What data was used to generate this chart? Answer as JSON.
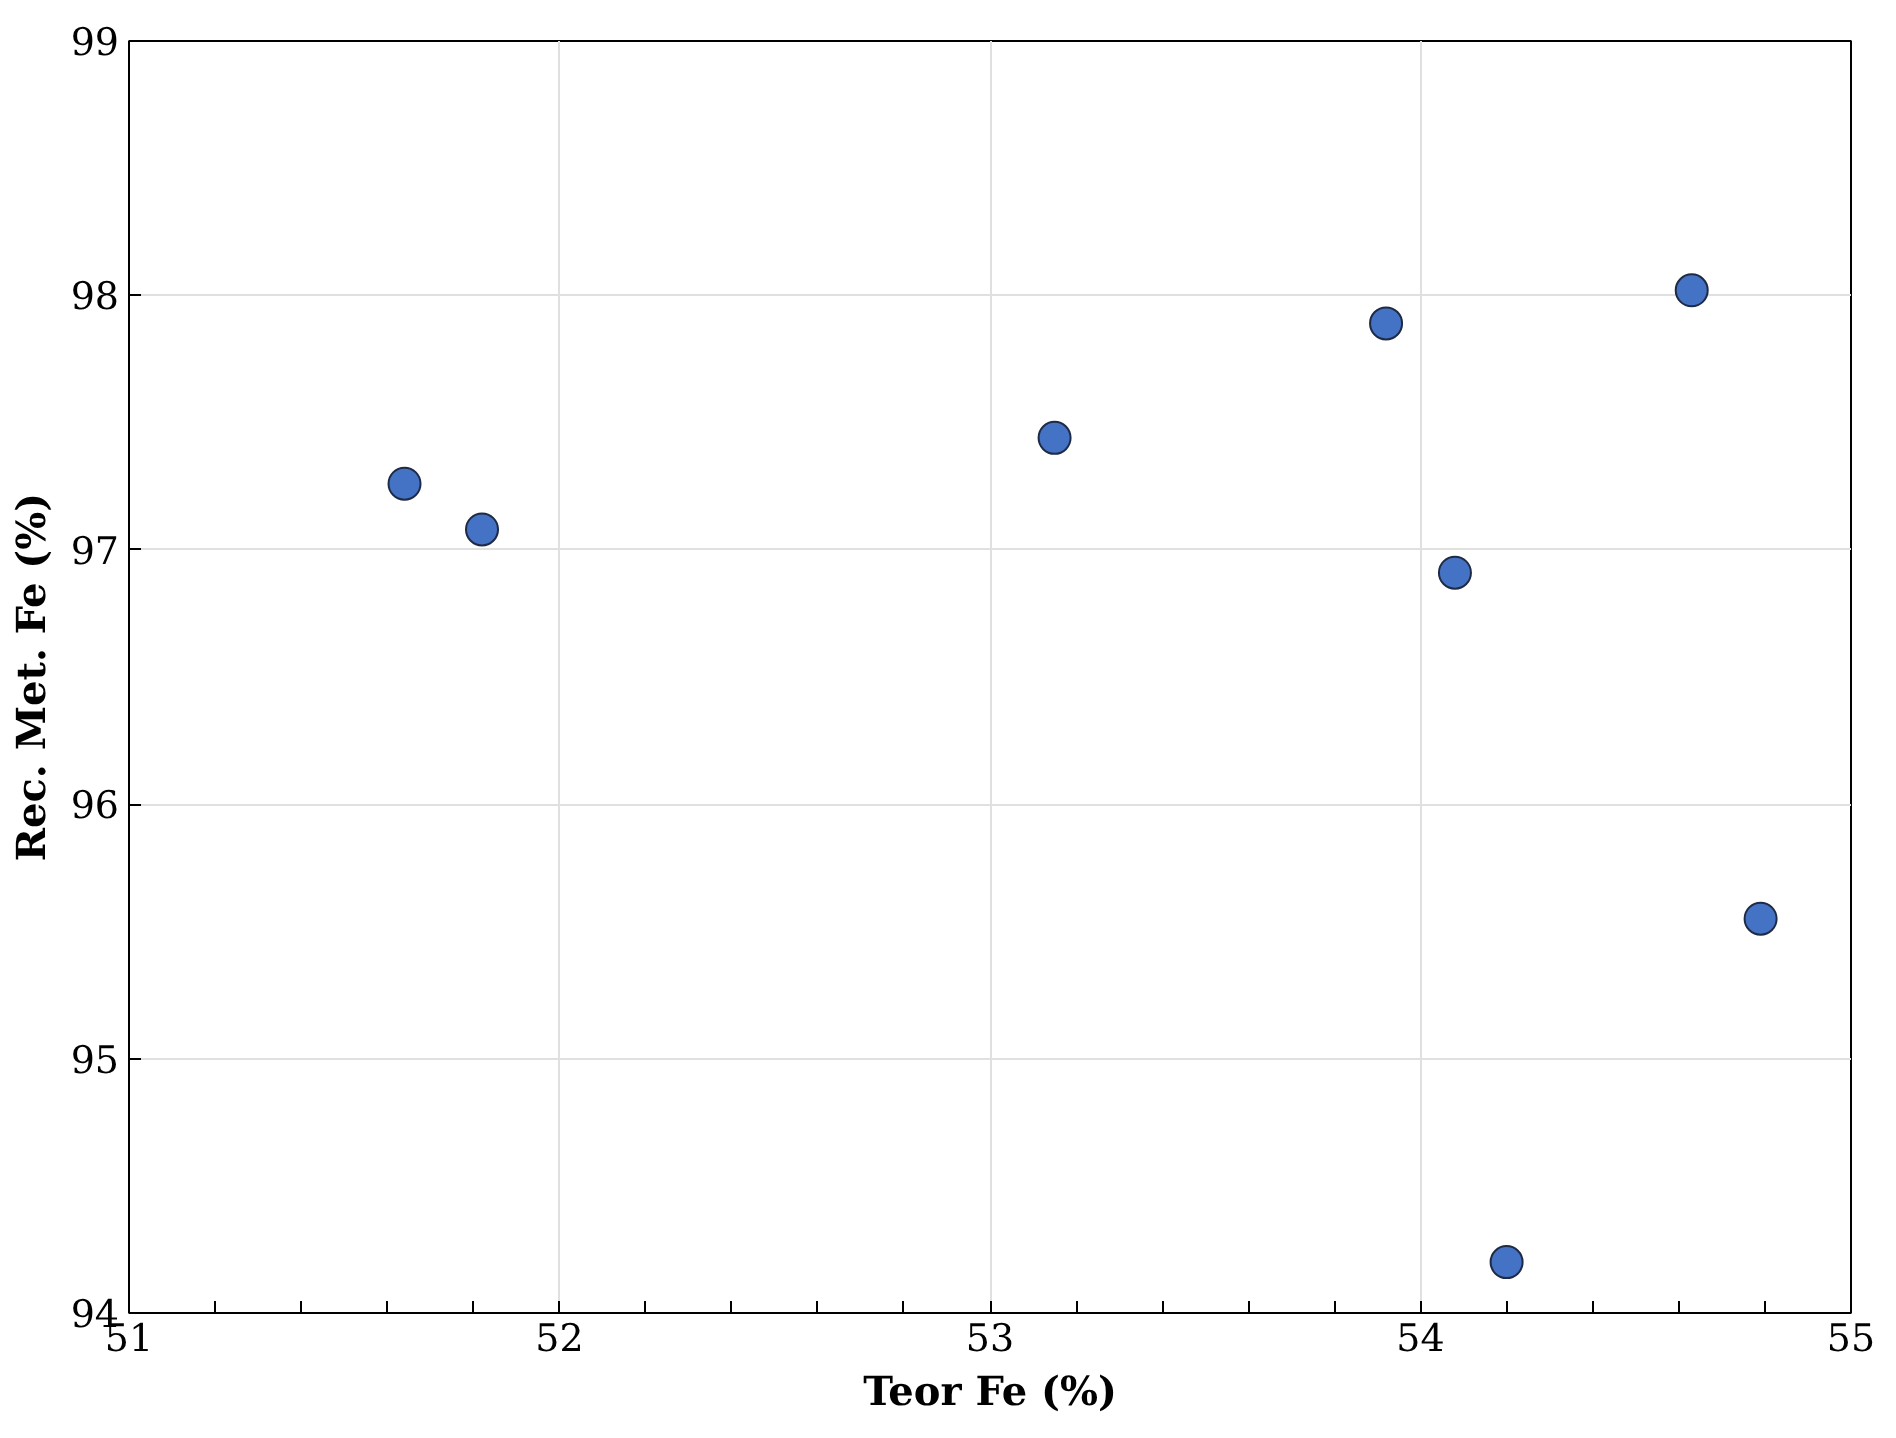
{
  "chart_data": {
    "type": "scatter",
    "xlabel": "Teor Fe (%)",
    "ylabel": "Rec. Met. Fe (%)",
    "x": [
      51.64,
      51.82,
      53.15,
      53.92,
      54.08,
      54.63,
      54.79,
      54.2
    ],
    "series": [
      {
        "color": "#4472c4",
        "values": [
          97.26,
          97.08,
          97.44,
          97.89,
          96.91,
          98.02,
          95.55,
          94.2
        ]
      }
    ],
    "xlim": [
      51,
      55
    ],
    "ylim": [
      94,
      99
    ],
    "xticks": [
      51,
      {
        "value": 51.2,
        "label": null
      },
      {
        "value": 51.4,
        "label": null
      },
      {
        "value": 51.6,
        "label": null
      },
      {
        "value": 51.8,
        "label": null
      },
      52,
      {
        "value": 52.2,
        "label": null
      },
      {
        "value": 52.4,
        "label": null
      },
      {
        "value": 52.6,
        "label": null
      },
      {
        "value": 52.8,
        "label": null
      },
      53,
      {
        "value": 53.2,
        "label": null
      },
      {
        "value": 53.4,
        "label": null
      },
      {
        "value": 53.6,
        "label": null
      },
      {
        "value": 53.8,
        "label": null
      },
      54,
      {
        "value": 54.2,
        "label": null
      },
      {
        "value": 54.4,
        "label": null
      },
      {
        "value": 54.6,
        "label": null
      },
      {
        "value": 54.8,
        "label": null
      },
      55
    ],
    "yticks": [
      94,
      95,
      96,
      97,
      98,
      99
    ],
    "grid": true,
    "marker": "circle"
  }
}
